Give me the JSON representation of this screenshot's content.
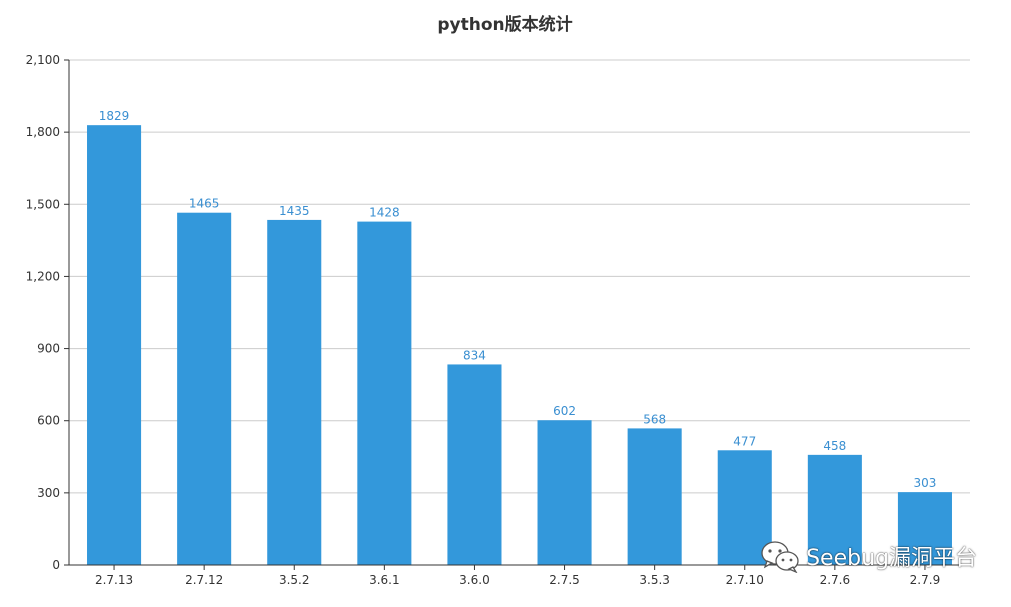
{
  "chart_data": {
    "type": "bar",
    "title": "python版本统计",
    "categories": [
      "2.7.13",
      "2.7.12",
      "3.5.2",
      "3.6.1",
      "3.6.0",
      "2.7.5",
      "3.5.3",
      "2.7.10",
      "2.7.6",
      "2.7.9"
    ],
    "values": [
      1829,
      1465,
      1435,
      1428,
      834,
      602,
      568,
      477,
      458,
      303
    ],
    "data_labels": [
      "1829",
      "1465",
      "1435",
      "1428",
      "834",
      "602",
      "568",
      "477",
      "458",
      "303"
    ],
    "yticks": [
      0,
      300,
      600,
      900,
      1200,
      1500,
      1800,
      2100
    ],
    "ytick_labels": [
      "0",
      "300",
      "600",
      "900",
      "1,200",
      "1,500",
      "1,800",
      "2,100"
    ],
    "ylim": [
      0,
      2100
    ],
    "grid": true,
    "bar_color": "#3398db",
    "label_color": "#3a8fd1",
    "grid_color": "#cccccc",
    "axis_color": "#333333",
    "title_color": "#333333"
  },
  "watermark": {
    "text": "Seebug漏洞平台",
    "icon": "wechat-icon"
  }
}
